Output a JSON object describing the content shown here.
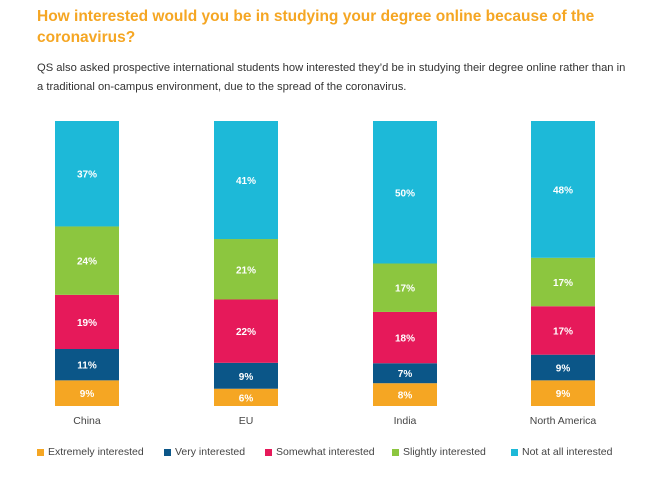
{
  "header": {
    "title": "How interested would you be in studying your degree online because of the coronavirus?",
    "subtitle": "QS also asked prospective international students how interested they’d be in studying their degree online rather than in a traditional on-campus environment, due to the spread of the coronavirus."
  },
  "chart_data": {
    "type": "bar",
    "stacked": true,
    "orientation": "vertical",
    "title": "How interested would you be in studying your degree online because of the coronavirus?",
    "categories": [
      "China",
      "EU",
      "India",
      "North America"
    ],
    "series": [
      {
        "name": "Extremely interested",
        "color": "#f5a623",
        "values": [
          9,
          6,
          8,
          9
        ],
        "labels": [
          "9%",
          "6%",
          "8%",
          "9%"
        ]
      },
      {
        "name": "Very interested",
        "color": "#0b5688",
        "values": [
          11,
          9,
          7,
          9
        ],
        "labels": [
          "11%",
          "9%",
          "7%",
          "9%"
        ]
      },
      {
        "name": "Somewhat interested",
        "color": "#e6195a",
        "values": [
          19,
          22,
          18,
          17
        ],
        "labels": [
          "19%",
          "22%",
          "18%",
          "17%"
        ]
      },
      {
        "name": "Slightly interested",
        "color": "#8cc63f",
        "values": [
          24,
          21,
          17,
          17
        ],
        "labels": [
          "24%",
          "21%",
          "17%",
          "17%"
        ]
      },
      {
        "name": "Not at all interested",
        "color": "#1db9d8",
        "values": [
          37,
          41,
          50,
          48
        ],
        "labels": [
          "37%",
          "41%",
          "50%",
          "48%"
        ]
      }
    ],
    "ylim": [
      0,
      100
    ],
    "xlabel": "",
    "ylabel": "",
    "legend_position": "bottom"
  }
}
